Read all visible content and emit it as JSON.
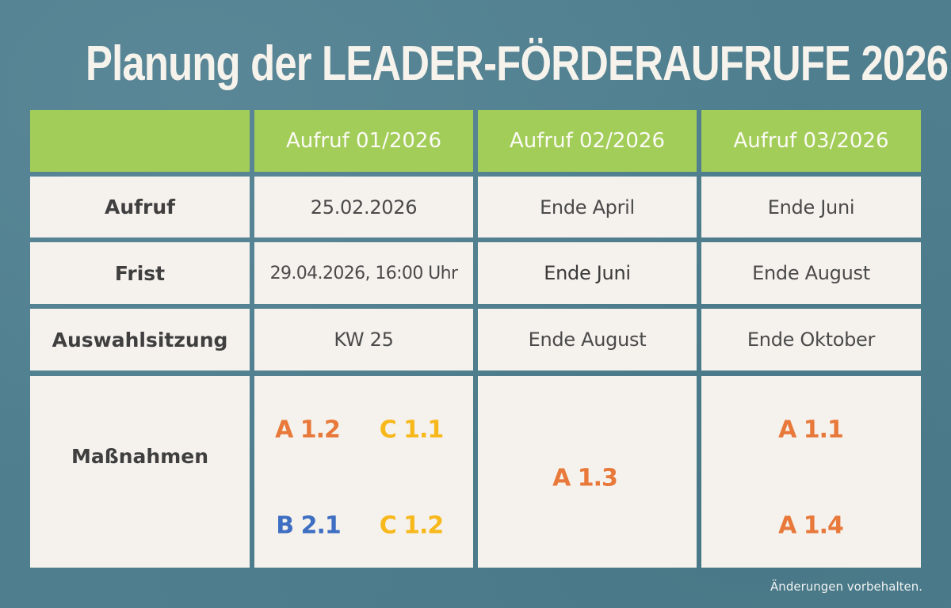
{
  "title": "Planung der LEADER-FÖRDERAUFRUFE 2026",
  "table": {
    "columns": [
      "",
      "Aufruf 01/2026",
      "Aufruf 02/2026",
      "Aufruf 03/2026"
    ],
    "rows": [
      {
        "label": "Aufruf",
        "values": [
          "25.02.2026",
          "Ende April",
          "Ende Juni"
        ]
      },
      {
        "label": "Frist",
        "values": [
          "29.04.2026, 16:00 Uhr",
          "Ende Juni",
          "Ende August"
        ]
      },
      {
        "label": "Auswahlsitzung",
        "values": [
          "KW 25",
          "Ende August",
          "Ende Oktober"
        ]
      }
    ],
    "measures": {
      "label": "Maßnahmen",
      "aufruf_01": [
        {
          "code": "A 1.2",
          "color": "#e8793a"
        },
        {
          "code": "C 1.1",
          "color": "#f7b81c"
        },
        {
          "code": "B 2.1",
          "color": "#3f6fc2"
        },
        {
          "code": "C 1.2",
          "color": "#f7b81c"
        }
      ],
      "aufruf_02": [
        {
          "code": "A 1.3",
          "color": "#e8793a"
        }
      ],
      "aufruf_03": [
        {
          "code": "A 1.1",
          "color": "#e8793a"
        },
        {
          "code": "A 1.4",
          "color": "#e8793a"
        }
      ]
    }
  },
  "footnote": "Änderungen vorbehalten.",
  "colors": {
    "background": "#4f7f8f",
    "header_green": "#a2cd58",
    "cell_bg": "#f5f2ed",
    "text_dark": "#454545",
    "orange": "#e8793a",
    "yellow": "#f7b81c",
    "blue": "#3f6fc2"
  }
}
